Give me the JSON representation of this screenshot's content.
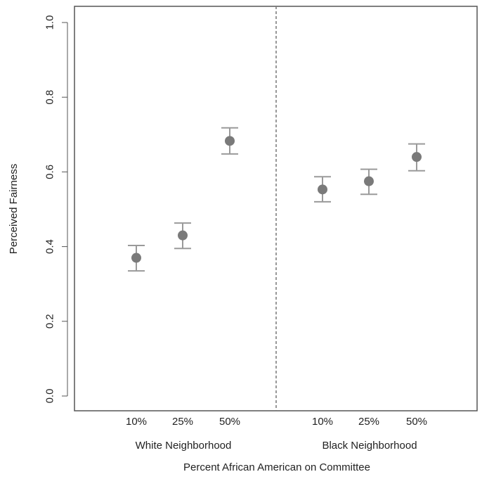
{
  "chart_data": {
    "type": "scatter",
    "xlabel": "Percent African American on Committee",
    "ylabel": "Perceived Fairness",
    "ylim": [
      0,
      1
    ],
    "yticks": [
      "0.0",
      "0.2",
      "0.4",
      "0.6",
      "0.8",
      "1.0"
    ],
    "grid": false,
    "groups": [
      {
        "label": "White Neighborhood",
        "categories": [
          "10%",
          "25%",
          "50%"
        ],
        "values": [
          0.37,
          0.43,
          0.683
        ],
        "lower": [
          0.335,
          0.395,
          0.648
        ],
        "upper": [
          0.403,
          0.463,
          0.718
        ]
      },
      {
        "label": "Black Neighborhood",
        "categories": [
          "10%",
          "25%",
          "50%"
        ],
        "values": [
          0.553,
          0.575,
          0.64
        ],
        "lower": [
          0.52,
          0.54,
          0.603
        ],
        "upper": [
          0.587,
          0.607,
          0.675
        ]
      }
    ],
    "divider": "dashed vertical line between groups",
    "colors": {
      "point": "#7a7a7a",
      "errorbar": "#9a9a9a",
      "axis": "#555555",
      "text": "#222222"
    }
  }
}
